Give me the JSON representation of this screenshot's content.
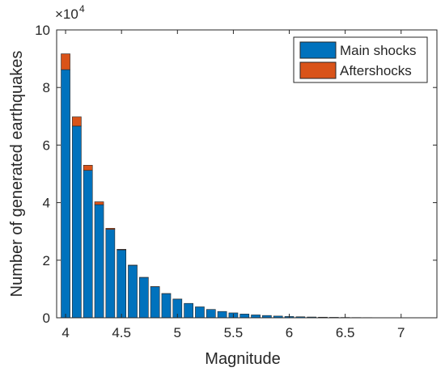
{
  "chart_data": {
    "type": "bar",
    "stacked": true,
    "xlabel": "Magnitude",
    "ylabel": "Number of generated earthquakes",
    "y_exponent": "4",
    "xlim": [
      3.92,
      7.32
    ],
    "ylim": [
      0,
      10
    ],
    "xticks": [
      4,
      4.5,
      5,
      5.5,
      6,
      6.5,
      7
    ],
    "xtick_labels": [
      "4",
      "4.5",
      "5",
      "5.5",
      "6",
      "6.5",
      "7"
    ],
    "yticks": [
      0,
      2,
      4,
      6,
      8,
      10
    ],
    "ytick_labels": [
      "0",
      "2",
      "4",
      "6",
      "8",
      "10"
    ],
    "bar_width": 0.08,
    "x": [
      4.0,
      4.1,
      4.2,
      4.3,
      4.4,
      4.5,
      4.6,
      4.7,
      4.8,
      4.9,
      5.0,
      5.1,
      5.2,
      5.3,
      5.4,
      5.5,
      5.6,
      5.7,
      5.8,
      5.9,
      6.0,
      6.1,
      6.2,
      6.3,
      6.4,
      6.5,
      6.6,
      6.7,
      6.8,
      6.9,
      7.0,
      7.1,
      7.2
    ],
    "series": [
      {
        "name": "Main shocks",
        "color": "#0072BD",
        "values": [
          8.62,
          6.66,
          5.12,
          3.93,
          3.07,
          2.36,
          1.82,
          1.4,
          1.08,
          0.84,
          0.65,
          0.5,
          0.38,
          0.29,
          0.22,
          0.17,
          0.13,
          0.1,
          0.08,
          0.06,
          0.045,
          0.035,
          0.027,
          0.021,
          0.016,
          0.012,
          0.009,
          0.007,
          0.005,
          0.004,
          0.003,
          0.002,
          0.002
        ]
      },
      {
        "name": "Aftershocks",
        "color": "#D95319",
        "values": [
          0.55,
          0.32,
          0.18,
          0.1,
          0.04,
          0.02,
          0.01,
          0.005,
          0.003,
          0.002,
          0.001,
          0.0,
          0.0,
          0.0,
          0.0,
          0.0,
          0.0,
          0.0,
          0.0,
          0.0,
          0.0,
          0.0,
          0.0,
          0.0,
          0.0,
          0.0,
          0.0,
          0.0,
          0.0,
          0.0,
          0.0,
          0.0,
          0.0
        ]
      }
    ],
    "legend": {
      "location": "top-right",
      "entries": [
        "Main shocks",
        "Aftershocks"
      ]
    },
    "grid": false,
    "box": true
  }
}
